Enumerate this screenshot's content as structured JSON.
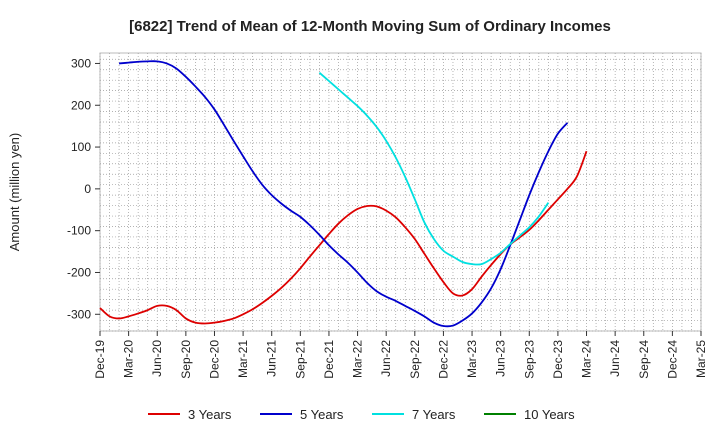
{
  "chart_data": {
    "type": "line",
    "title": "[6822]  Trend of Mean of 12-Month Moving Sum of Ordinary Incomes",
    "xlabel": "",
    "ylabel": "Amount (million yen)",
    "ylim": [
      -340,
      325
    ],
    "y_ticks": [
      300,
      200,
      100,
      0,
      -100,
      -200,
      -300
    ],
    "x_tick_labels": [
      "Dec-19",
      "Mar-20",
      "Jun-20",
      "Sep-20",
      "Dec-20",
      "Mar-21",
      "Jun-21",
      "Sep-21",
      "Dec-21",
      "Mar-22",
      "Jun-22",
      "Sep-22",
      "Dec-22",
      "Mar-23",
      "Jun-23",
      "Sep-23",
      "Dec-23",
      "Mar-24",
      "Jun-24",
      "Sep-24",
      "Dec-24",
      "Mar-25"
    ],
    "grid": true,
    "legend_position": "bottom",
    "series": [
      {
        "name": "3 Years",
        "color": "#dd0000",
        "start_index": 0,
        "values": [
          -285,
          -305,
          -310,
          -305,
          -298,
          -290,
          -280,
          -280,
          -290,
          -310,
          -320,
          -322,
          -320,
          -316,
          -310,
          -300,
          -288,
          -273,
          -256,
          -237,
          -215,
          -190,
          -162,
          -135,
          -108,
          -83,
          -63,
          -48,
          -41,
          -42,
          -52,
          -68,
          -92,
          -120,
          -155,
          -190,
          -223,
          -250,
          -255,
          -240,
          -210,
          -182,
          -156,
          -133,
          -116,
          -98,
          -75,
          -50,
          -25,
          0,
          30,
          90
        ]
      },
      {
        "name": "5 Years",
        "color": "#0000cc",
        "start_index": 2,
        "values": [
          300,
          302,
          304,
          305,
          305,
          300,
          288,
          268,
          245,
          220,
          190,
          153,
          115,
          78,
          42,
          10,
          -15,
          -35,
          -52,
          -67,
          -87,
          -110,
          -135,
          -157,
          -177,
          -200,
          -225,
          -245,
          -258,
          -268,
          -280,
          -292,
          -305,
          -320,
          -328,
          -327,
          -315,
          -298,
          -272,
          -238,
          -192,
          -135,
          -75,
          -15,
          40,
          90,
          132,
          158
        ]
      },
      {
        "name": "7 Years",
        "color": "#00e0e0",
        "start_index": 23,
        "values": [
          278,
          258,
          238,
          218,
          198,
          175,
          148,
          115,
          75,
          28,
          -25,
          -80,
          -120,
          -148,
          -162,
          -175,
          -180,
          -180,
          -168,
          -153,
          -132,
          -112,
          -92,
          -66,
          -33
        ]
      },
      {
        "name": "10 Years",
        "color": "#008000",
        "start_index": 0,
        "values": []
      }
    ]
  }
}
